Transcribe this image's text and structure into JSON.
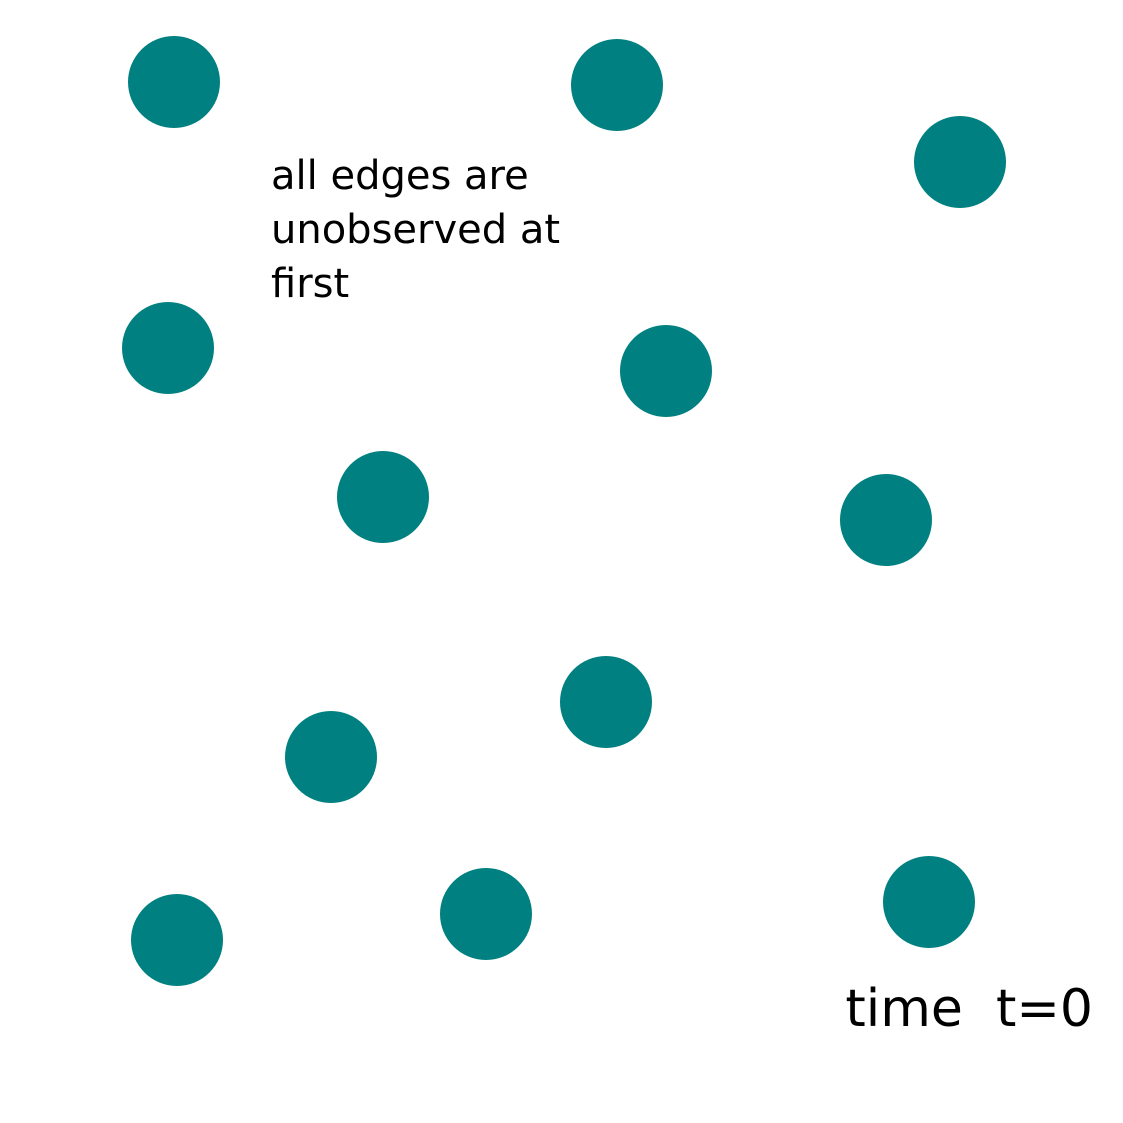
{
  "diagram": {
    "node_color": "#008080",
    "node_count": 12,
    "annotation": {
      "lines": [
        "all edges are",
        "unobserved at",
        "first"
      ]
    },
    "time_label": "time  t=0"
  }
}
